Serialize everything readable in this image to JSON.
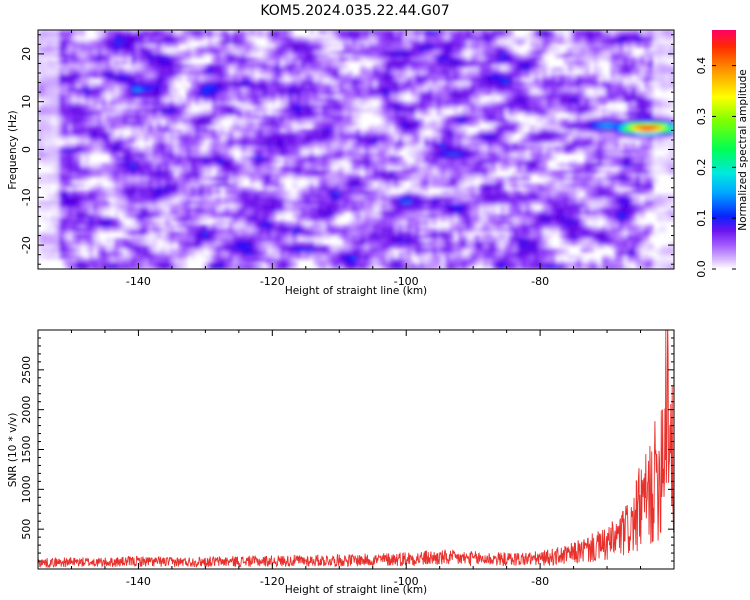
{
  "title": "KOM5.2024.035.22.44.G07",
  "colors": {
    "snr_line": "#e8302c",
    "colormap": [
      "#ffffff",
      "#c896ff",
      "#8a2cff",
      "#5a00e0",
      "#0033ff",
      "#00d2ff",
      "#00ff66",
      "#ffff00",
      "#ff7f00",
      "#ff0044"
    ]
  },
  "chart_data": [
    {
      "type": "heatmap",
      "xlabel": "Height of straight line (km)",
      "ylabel": "Frequency (Hz)",
      "xlim": [
        -155,
        -60
      ],
      "ylim": [
        -25,
        25
      ],
      "xticks": [
        -140,
        -120,
        -100,
        -80
      ],
      "yticks": [
        -20,
        -10,
        0,
        10,
        20
      ],
      "colorbar": {
        "label": "Normalized spectral amplitude",
        "range": [
          0.0,
          0.47
        ],
        "ticks": [
          0.0,
          0.1,
          0.2,
          0.3,
          0.4
        ]
      },
      "features": [
        {
          "x": -64,
          "y": 4.5,
          "amplitude": 0.45
        },
        {
          "x": -70,
          "y": 5.0,
          "amplitude": 0.15
        },
        {
          "x": -93,
          "y": -1.0,
          "amplitude": 0.12
        },
        {
          "x": -101,
          "y": 20.0,
          "amplitude": 0.1
        }
      ]
    },
    {
      "type": "line",
      "xlabel": "Height of straight line (km)",
      "ylabel": "SNR (10 * v/v)",
      "xlim": [
        -155,
        -60
      ],
      "ylim": [
        0,
        3000
      ],
      "xticks": [
        -140,
        -120,
        -100,
        -80
      ],
      "yticks": [
        500,
        1000,
        1500,
        2000,
        2500
      ],
      "series": [
        {
          "x": [
            -155,
            -150,
            -145,
            -140,
            -135,
            -130,
            -125,
            -120,
            -115,
            -110,
            -105,
            -100,
            -95,
            -90,
            -85,
            -80,
            -76,
            -73,
            -70,
            -68,
            -66,
            -65,
            -64,
            -63,
            -62,
            -61.5,
            -61,
            -60.5,
            -60
          ],
          "values": [
            90,
            100,
            95,
            110,
            100,
            105,
            110,
            115,
            120,
            125,
            130,
            150,
            160,
            150,
            140,
            150,
            200,
            280,
            350,
            480,
            650,
            900,
            1000,
            1200,
            1500,
            2000,
            2900,
            1800,
            1300
          ]
        }
      ]
    }
  ]
}
